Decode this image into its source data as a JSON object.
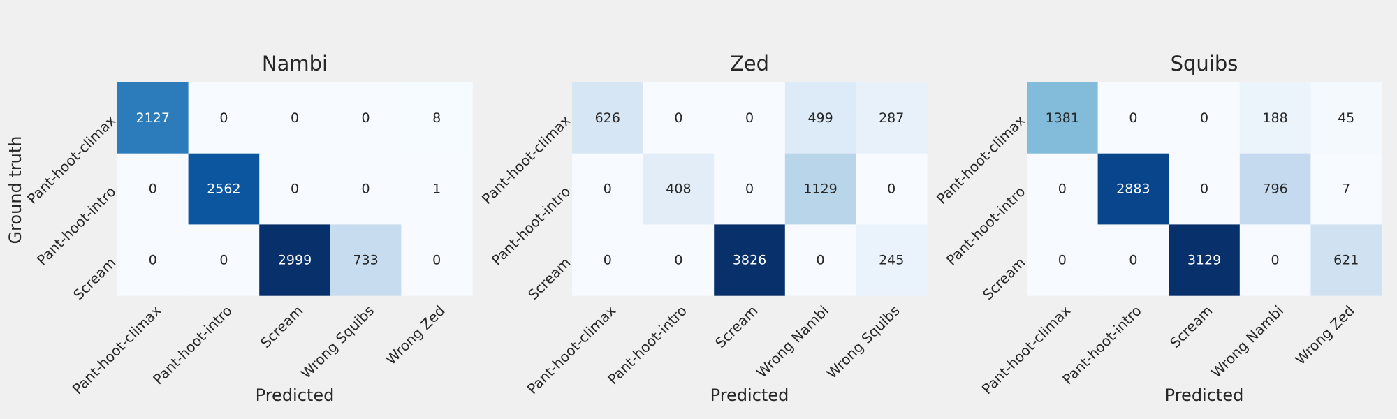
{
  "figure": {
    "ylabel": "Ground truth"
  },
  "chart_data": [
    {
      "type": "heatmap",
      "title": "Nambi",
      "xlabel": "Predicted",
      "ylabel": "Ground truth",
      "row_labels": [
        "Pant-hoot-climax",
        "Pant-hoot-intro",
        "Scream"
      ],
      "col_labels": [
        "Pant-hoot-climax",
        "Pant-hoot-intro",
        "Scream",
        "Wrong Squibs",
        "Wrong Zed"
      ],
      "values": [
        [
          2127,
          0,
          0,
          0,
          8
        ],
        [
          0,
          2562,
          0,
          0,
          1
        ],
        [
          0,
          0,
          2999,
          733,
          0
        ]
      ],
      "colormap": "Blues",
      "colorbar": false
    },
    {
      "type": "heatmap",
      "title": "Zed",
      "xlabel": "Predicted",
      "ylabel": "",
      "row_labels": [
        "Pant-hoot-climax",
        "Pant-hoot-intro",
        "Scream"
      ],
      "col_labels": [
        "Pant-hoot-climax",
        "Pant-hoot-intro",
        "Scream",
        "Wrong Nambi",
        "Wrong Squibs"
      ],
      "values": [
        [
          626,
          0,
          0,
          499,
          287
        ],
        [
          0,
          408,
          0,
          1129,
          0
        ],
        [
          0,
          0,
          3826,
          0,
          245
        ]
      ],
      "colormap": "Blues",
      "colorbar": false
    },
    {
      "type": "heatmap",
      "title": "Squibs",
      "xlabel": "Predicted",
      "ylabel": "",
      "row_labels": [
        "Pant-hoot-climax",
        "Pant-hoot-intro",
        "Scream"
      ],
      "col_labels": [
        "Pant-hoot-climax",
        "Pant-hoot-intro",
        "Scream",
        "Wrong Nambi",
        "Wrong Zed"
      ],
      "values": [
        [
          1381,
          0,
          0,
          188,
          45
        ],
        [
          0,
          2883,
          0,
          796,
          7
        ],
        [
          0,
          0,
          3129,
          0,
          621
        ]
      ],
      "colormap": "Blues",
      "colorbar": false
    }
  ]
}
